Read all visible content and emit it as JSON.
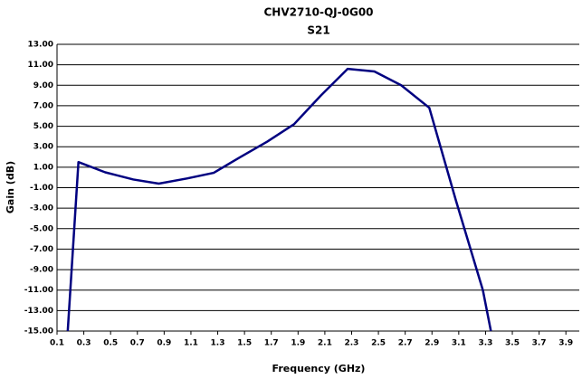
{
  "chart_data": {
    "type": "line",
    "title": "CHV2710-QJ-0G00",
    "subtitle": "S21",
    "x_label": "Frequency (GHz)",
    "y_label": "Gain (dB)",
    "x": [
      0.18,
      0.26,
      0.46,
      0.67,
      0.86,
      1.07,
      1.27,
      1.47,
      1.67,
      1.87,
      2.07,
      2.27,
      2.47,
      2.67,
      2.88,
      3.08,
      3.28,
      3.34
    ],
    "series": [
      {
        "name": "S21",
        "color": "#000080",
        "values": [
          -15,
          1.5,
          0.5,
          -0.2,
          -0.6,
          -0.1,
          0.45,
          2.0,
          3.5,
          5.2,
          8.0,
          10.6,
          10.35,
          9.0,
          6.8,
          -2.3,
          -11.0,
          -15
        ]
      }
    ],
    "xlim": [
      0.1,
      4.0
    ],
    "ylim": [
      -15,
      13
    ],
    "xticks": [
      0.1,
      0.3,
      0.5,
      0.7,
      0.9,
      1.1,
      1.3,
      1.5,
      1.7,
      1.9,
      2.1,
      2.3,
      2.5,
      2.7,
      2.9,
      3.1,
      3.3,
      3.5,
      3.7,
      3.9
    ],
    "yticks": [
      {
        "value": 13,
        "label": "13.00"
      },
      {
        "value": 11,
        "label": "11.00"
      },
      {
        "value": 9,
        "label": "9.00"
      },
      {
        "value": 7,
        "label": "7.00"
      },
      {
        "value": 5,
        "label": "5.00"
      },
      {
        "value": 3,
        "label": "3.00"
      },
      {
        "value": 1,
        "label": "1.00"
      },
      {
        "value": -1,
        "label": "-1.00"
      },
      {
        "value": -3,
        "label": "-3.00"
      },
      {
        "value": -5,
        "label": "-5.00"
      },
      {
        "value": -7,
        "label": "-7.00"
      },
      {
        "value": -9,
        "label": "-9.00"
      },
      {
        "value": -11,
        "label": "-11.00"
      },
      {
        "value": -13,
        "label": "-13.00"
      },
      {
        "value": -15,
        "label": "-15.00"
      }
    ],
    "grid": true
  }
}
